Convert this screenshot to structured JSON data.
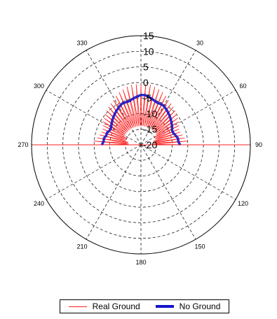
{
  "chart_data": {
    "type": "line",
    "coordinate_system": "polar",
    "theta_zero": "top",
    "theta_direction": "clockwise",
    "angle_ticks": [
      "0",
      "30",
      "60",
      "90",
      "120",
      "150",
      "180",
      "210",
      "240",
      "270",
      "300",
      "330"
    ],
    "visible_angle_labels": [
      "",
      "30",
      "60",
      "90",
      "120",
      "150",
      "180",
      "210",
      "240",
      "270",
      "300",
      "330"
    ],
    "r_ticks": [
      "15",
      "10",
      "5",
      "0",
      "-5",
      "-10",
      "-15",
      "-20"
    ],
    "r_tick_labels": [
      "15",
      "10",
      "5",
      "0",
      "-5",
      "-10",
      "-15",
      "-20"
    ],
    "rlim": [
      -20,
      15
    ],
    "grid": true,
    "legend_placement": "bottom",
    "series": [
      {
        "name": "Real Ground",
        "color": "#ff2020",
        "style": "oscillating spikes between envelope and inner baseline",
        "theta_deg": [
          -90,
          -85,
          -80,
          -75,
          -70,
          -65,
          -60,
          -55,
          -50,
          -45,
          -40,
          -35,
          -30,
          -25,
          -20,
          -15,
          -10,
          -5,
          0,
          5,
          10,
          15,
          20,
          25,
          30,
          35,
          40,
          45,
          50,
          55,
          60,
          65,
          70,
          75,
          80,
          85,
          90
        ],
        "envelope_r": [
          -4,
          -5,
          -6,
          -6.5,
          -7,
          -6.5,
          -6,
          -5.5,
          -5,
          -4.5,
          -4,
          -3.5,
          -3,
          -2,
          -1.5,
          -1,
          -0.5,
          -0.5,
          -0.5,
          -0.5,
          -0.5,
          -1,
          -1.5,
          -2,
          -3,
          -3.5,
          -4,
          -4.5,
          -5,
          -5.5,
          -6,
          -6.5,
          -7,
          -6.5,
          -6,
          -5,
          -4
        ],
        "inner_r": [
          -16,
          -16,
          -16,
          -15,
          -15,
          -15,
          -14,
          -14,
          -14,
          -14,
          -14,
          -14,
          -14,
          -14,
          -14,
          -14,
          -14,
          -14,
          -14,
          -14,
          -14,
          -14,
          -14,
          -14,
          -14,
          -14,
          -14,
          -14,
          -14,
          -14,
          -15,
          -15,
          -15,
          -16,
          -16,
          -16,
          -16
        ]
      },
      {
        "name": "No Ground",
        "color": "#1414c8",
        "theta_deg": [
          -90,
          -85,
          -80,
          -75,
          -70,
          -65,
          -60,
          -55,
          -50,
          -45,
          -40,
          -35,
          -30,
          -25,
          -20,
          -15,
          -10,
          -5,
          0,
          5,
          10,
          15,
          20,
          25,
          30,
          35,
          40,
          45,
          50,
          55,
          60,
          65,
          70,
          75,
          80,
          85,
          90
        ],
        "r": [
          -7.5,
          -8,
          -8,
          -8.5,
          -8.5,
          -9,
          -9,
          -8.5,
          -8,
          -7.5,
          -7,
          -6.5,
          -6,
          -5.5,
          -5.5,
          -5.5,
          -5,
          -4.5,
          -4,
          -4,
          -4.5,
          -5,
          -5.5,
          -5.5,
          -5.5,
          -6,
          -6.5,
          -7,
          -7.5,
          -8,
          -8.5,
          -9,
          -9,
          -8.5,
          -8,
          -8,
          -7.5
        ]
      }
    ]
  },
  "legend": {
    "items": [
      {
        "label": "Real Ground",
        "color": "#ff2020"
      },
      {
        "label": "No Ground",
        "color": "#1414c8"
      }
    ]
  }
}
